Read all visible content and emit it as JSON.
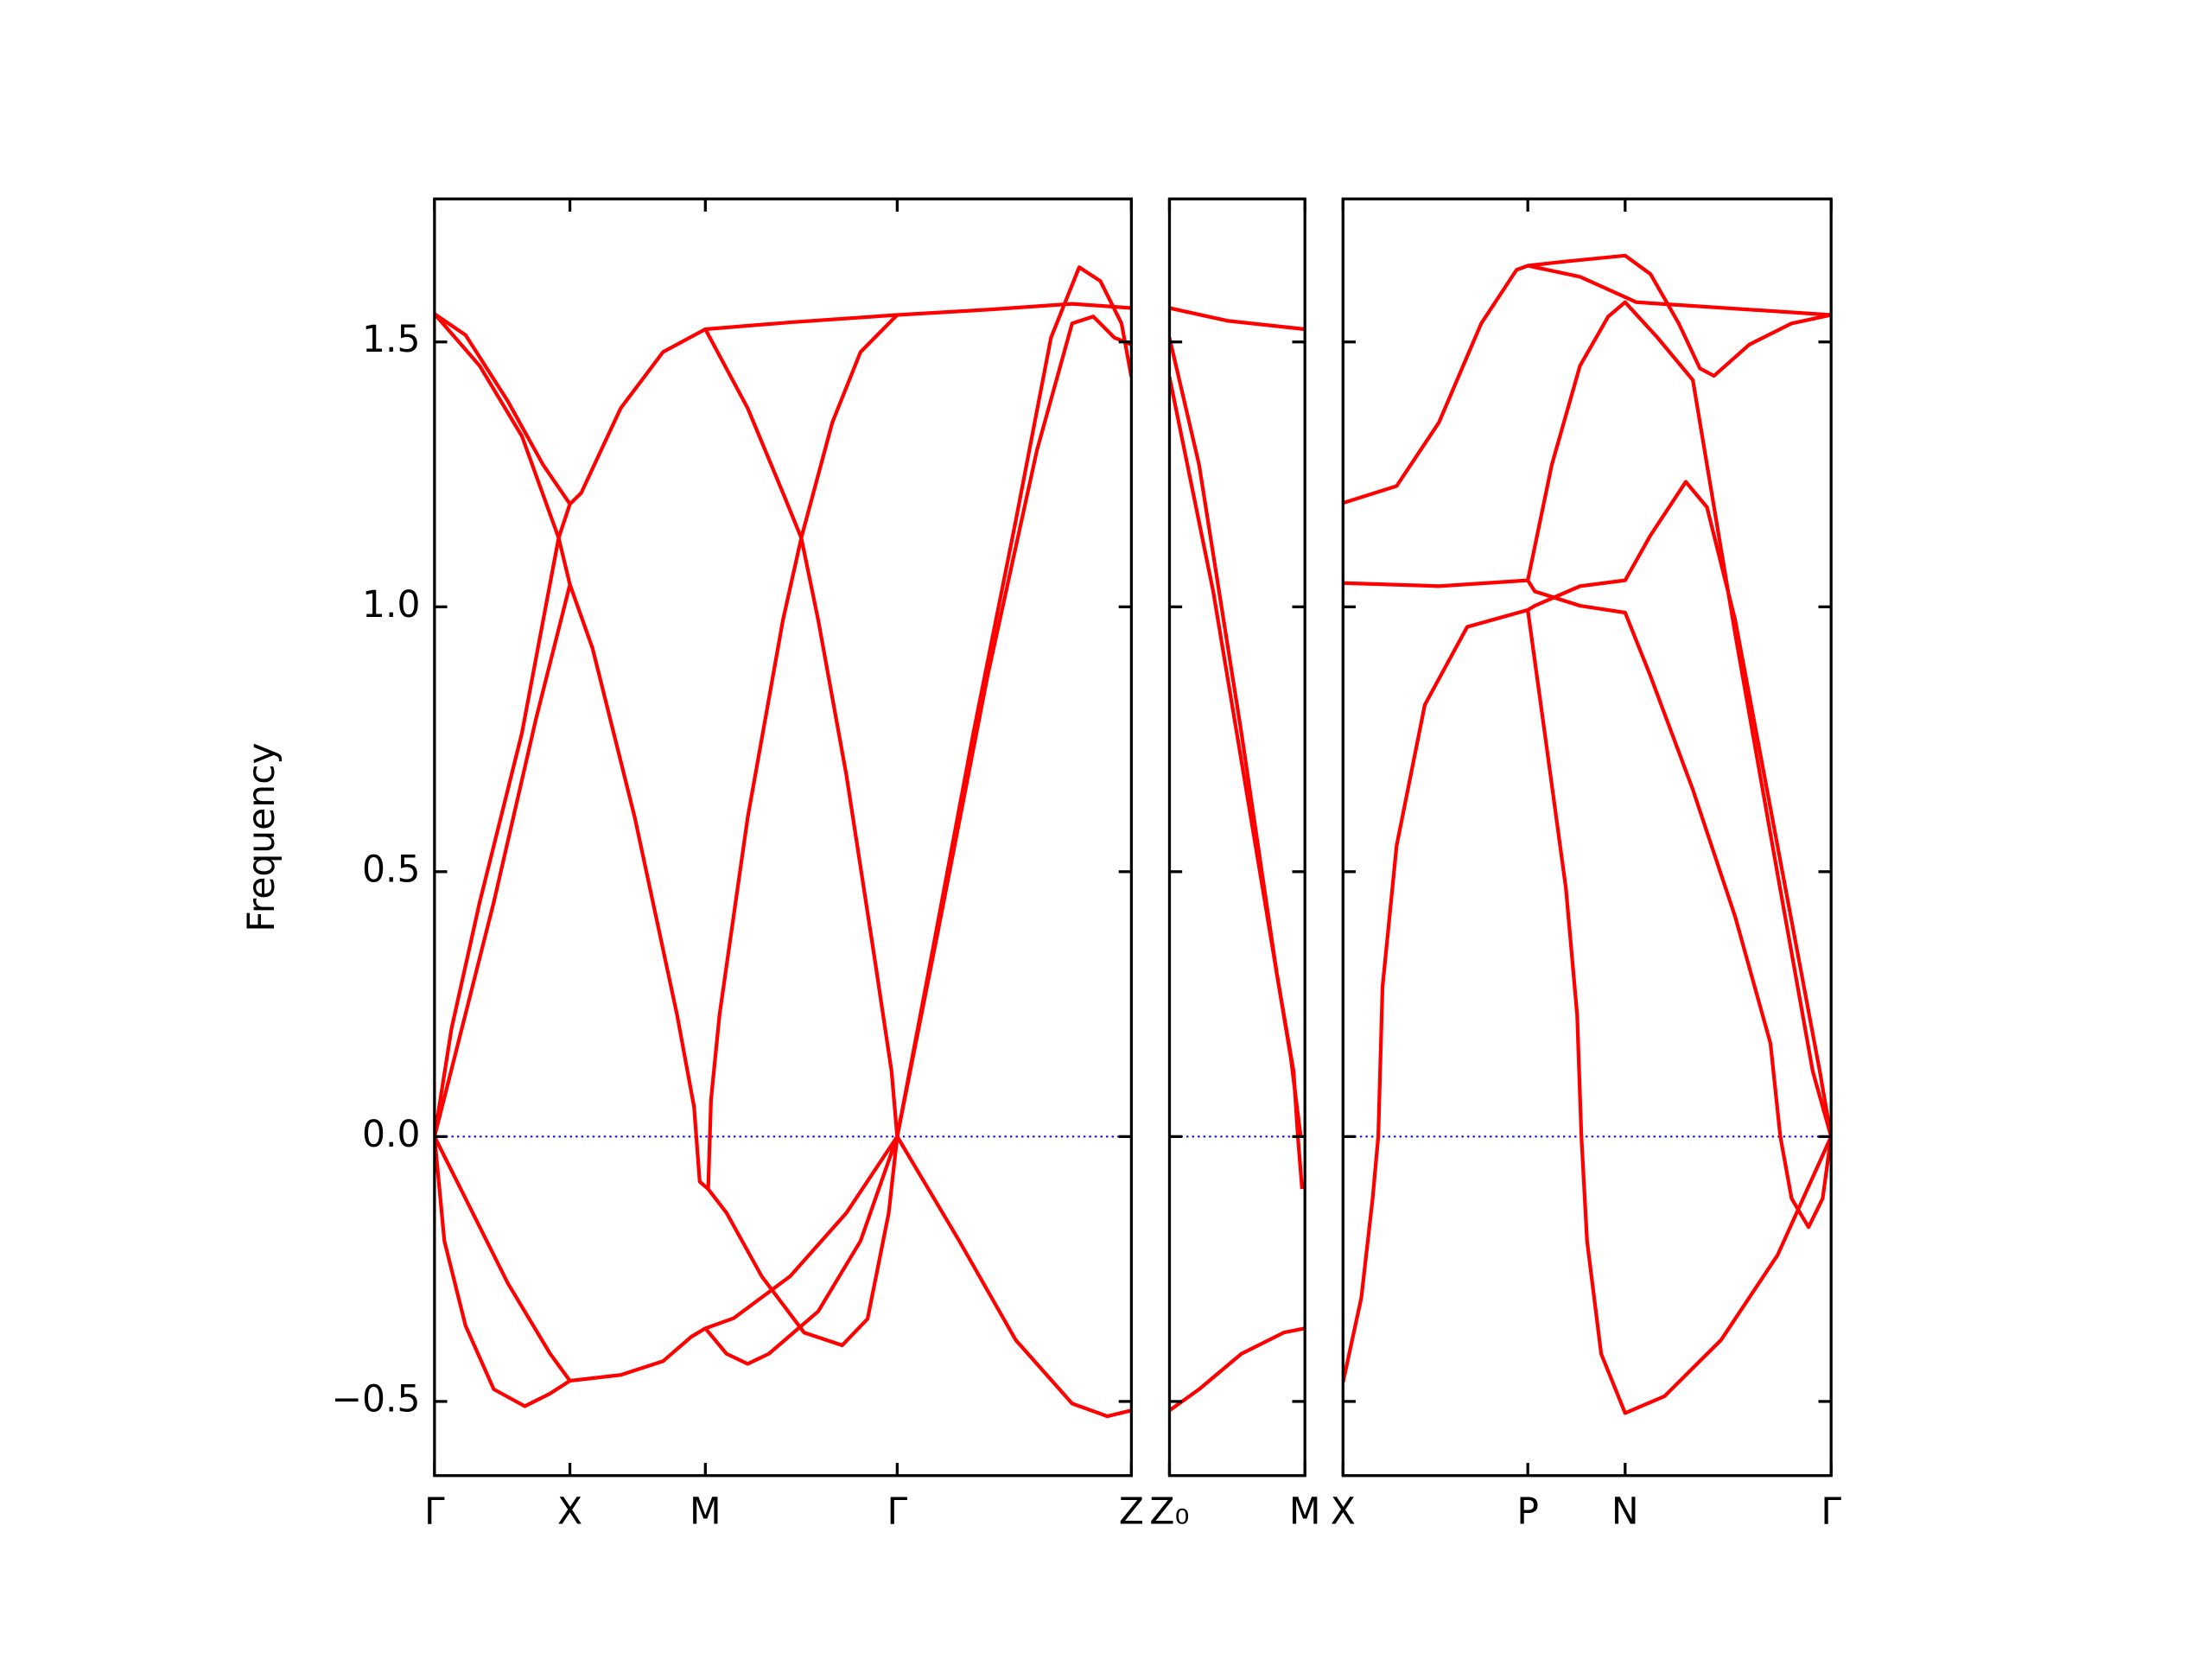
{
  "chart_data": [
    {
      "type": "line",
      "color": "#ff0000",
      "baseline_color": "#0000ff",
      "ylabel": "Frequency",
      "xlim": [
        0,
        4.94
      ],
      "xticks": [
        {
          "value": 0,
          "label": "Γ"
        },
        {
          "value": 0.96,
          "label": "X"
        },
        {
          "value": 1.92,
          "label": "M"
        },
        {
          "value": 3.28,
          "label": "Γ"
        },
        {
          "value": 4.94,
          "label": "Z"
        }
      ],
      "ylim": [
        -0.64,
        1.77
      ],
      "yticks": [
        {
          "value": -0.5,
          "label": "−0.5"
        },
        {
          "value": 0,
          "label": "0.0"
        },
        0.5,
        {
          "value": 1,
          "label": "1.0"
        },
        1.5
      ],
      "series": [
        {
          "x": [
            0,
            0.32,
            0.62,
            0.88,
            0.96,
            1.12,
            1.42,
            1.72,
            1.84,
            1.88,
            1.94,
            2.07,
            2.32,
            2.62,
            2.89,
            3.07,
            3.22,
            3.28
          ],
          "values": [
            1.553,
            1.455,
            1.322,
            1.13,
            1.042,
            0.922,
            0.602,
            0.229,
            0.056,
            -0.085,
            -0.099,
            -0.144,
            -0.264,
            -0.37,
            -0.394,
            -0.344,
            -0.144,
            0
          ]
        },
        {
          "x": [
            0,
            0.22,
            0.52,
            0.77,
            0.96,
            1.04,
            1.32,
            1.62,
            1.92,
            2.52,
            3.28,
            3.92,
            4.52,
            4.94
          ],
          "values": [
            1.553,
            1.513,
            1.388,
            1.268,
            1.194,
            1.215,
            1.375,
            1.481,
            1.524,
            1.537,
            1.551,
            1.561,
            1.572,
            1.564
          ]
        },
        {
          "x": [
            0,
            0.12,
            0.32,
            0.62,
            0.88,
            0.96
          ],
          "values": [
            0,
            0.203,
            0.442,
            0.762,
            1.13,
            1.194
          ]
        },
        {
          "x": [
            0,
            0.42,
            0.72,
            0.96
          ],
          "values": [
            0,
            0.442,
            0.789,
            1.042
          ]
        },
        {
          "x": [
            1.92,
            2.22,
            2.47,
            2.6,
            2.72,
            2.92,
            3.12,
            3.24,
            3.28
          ],
          "values": [
            1.524,
            1.375,
            1.215,
            1.13,
            0.975,
            0.682,
            0.336,
            0.123,
            0
          ]
        },
        {
          "x": [
            1.94,
            1.96,
            2.02,
            2.22,
            2.47,
            2.6,
            2.82,
            3.02,
            3.28
          ],
          "values": [
            -0.099,
            0.069,
            0.229,
            0.602,
            0.975,
            1.13,
            1.348,
            1.481,
            1.551
          ]
        },
        {
          "x": [
            3.28,
            3.52,
            3.82,
            4.12,
            4.37,
            4.57,
            4.72,
            4.87,
            4.94
          ],
          "values": [
            0,
            0.336,
            0.762,
            1.162,
            1.508,
            1.641,
            1.615,
            1.535,
            1.434
          ]
        },
        {
          "x": [
            3.28,
            3.57,
            3.92,
            4.27,
            4.52,
            4.67,
            4.82,
            4.94
          ],
          "values": [
            0,
            0.389,
            0.869,
            1.295,
            1.535,
            1.548,
            1.508,
            1.495
          ]
        },
        {
          "x": [
            0,
            0.22,
            0.52,
            0.82,
            0.96,
            1.32,
            1.62,
            1.82,
            1.92,
            2.12,
            2.52,
            2.92,
            3.28
          ],
          "values": [
            0,
            -0.117,
            -0.277,
            -0.41,
            -0.461,
            -0.45,
            -0.424,
            -0.378,
            -0.362,
            -0.343,
            -0.264,
            -0.144,
            0
          ]
        },
        {
          "x": [
            0,
            0.07,
            0.22,
            0.42,
            0.64,
            0.82,
            0.96
          ],
          "values": [
            0,
            -0.197,
            -0.357,
            -0.477,
            -0.509,
            -0.485,
            -0.461
          ]
        },
        {
          "x": [
            1.92,
            2.07,
            2.22,
            2.37,
            2.72,
            3.02,
            3.28
          ],
          "values": [
            -0.362,
            -0.41,
            -0.429,
            -0.41,
            -0.33,
            -0.197,
            0
          ]
        },
        {
          "x": [
            3.28,
            3.72,
            4.12,
            4.52,
            4.77,
            4.94
          ],
          "values": [
            0,
            -0.197,
            -0.384,
            -0.504,
            -0.528,
            -0.517
          ]
        }
      ]
    },
    {
      "type": "line",
      "color": "#ff0000",
      "baseline_color": "#0000ff",
      "sharey": true,
      "xlim": [
        0,
        0.96
      ],
      "xticks": [
        {
          "value": 0,
          "label": "Z₀"
        },
        {
          "value": 0.96,
          "label": "M"
        }
      ],
      "series": [
        {
          "x": [
            0,
            0.41,
            0.96
          ],
          "values": [
            1.564,
            1.54,
            1.524
          ]
        },
        {
          "x": [
            0,
            0.21,
            0.51,
            0.76,
            0.88,
            0.91,
            0.94
          ],
          "values": [
            1.508,
            1.268,
            0.762,
            0.309,
            0.123,
            0,
            -0.099
          ]
        },
        {
          "x": [
            0,
            0.31,
            0.61,
            0.86,
            0.93
          ],
          "values": [
            1.434,
            1.029,
            0.549,
            0.149,
            0
          ]
        },
        {
          "x": [
            0,
            0.21,
            0.51,
            0.81,
            0.96
          ],
          "values": [
            -0.517,
            -0.477,
            -0.41,
            -0.37,
            -0.362
          ]
        }
      ]
    },
    {
      "type": "line",
      "color": "#ff0000",
      "baseline_color": "#0000ff",
      "sharey": true,
      "xlim": [
        0,
        3.46
      ],
      "xticks": [
        {
          "value": 0,
          "label": "X"
        },
        {
          "value": 1.31,
          "label": "P"
        },
        {
          "value": 2,
          "label": "N"
        },
        {
          "value": 3.46,
          "label": "Γ"
        }
      ],
      "series": [
        {
          "x": [
            0,
            0.38,
            0.68,
            0.98,
            1.23,
            1.31,
            1.58,
            2,
            2.18,
            2.38,
            2.53,
            2.63,
            2.88,
            3.18,
            3.46
          ],
          "values": [
            1.196,
            1.228,
            1.348,
            1.535,
            1.636,
            1.644,
            1.652,
            1.663,
            1.628,
            1.535,
            1.45,
            1.436,
            1.495,
            1.535,
            1.551
          ]
        },
        {
          "x": [
            1.31,
            1.68,
            1.93,
            2.08,
            3.46
          ],
          "values": [
            1.644,
            1.623,
            1.593,
            1.575,
            1.551
          ]
        },
        {
          "x": [
            0,
            0.68,
            1.31,
            1.36,
            1.68,
            2,
            2.18,
            2.48,
            2.78,
            3.03,
            3.1,
            3.18,
            3.3,
            3.4,
            3.46
          ],
          "values": [
            1.045,
            1.039,
            1.05,
            1.029,
            1.002,
            0.989,
            0.869,
            0.655,
            0.415,
            0.176,
            0,
            -0.117,
            -0.171,
            -0.117,
            0
          ]
        },
        {
          "x": [
            0,
            0.13,
            0.21,
            0.25,
            0.28,
            0.38,
            0.58,
            0.88,
            1.31,
            1.36,
            1.68,
            2,
            2.18,
            2.43,
            2.58,
            2.78,
            3.08,
            3.38,
            3.46
          ],
          "values": [
            -0.464,
            -0.304,
            -0.117,
            0,
            0.282,
            0.549,
            0.815,
            0.962,
            0.994,
            1.002,
            1.039,
            1.05,
            1.135,
            1.236,
            1.188,
            0.975,
            0.549,
            0.123,
            0
          ]
        },
        {
          "x": [
            1.31,
            1.43,
            1.58,
            1.66,
            1.69,
            1.73,
            1.83,
            2,
            2.28,
            2.68,
            3.08,
            3.46
          ],
          "values": [
            0.994,
            0.762,
            0.469,
            0.229,
            0,
            -0.197,
            -0.41,
            -0.522,
            -0.49,
            -0.384,
            -0.224,
            0
          ]
        },
        {
          "x": [
            1.31,
            1.48,
            1.68,
            1.88,
            2,
            2.23,
            2.48,
            2.78,
            3.08,
            3.33,
            3.46
          ],
          "values": [
            1.05,
            1.268,
            1.455,
            1.548,
            1.575,
            1.508,
            1.428,
            0.949,
            0.496,
            0.123,
            0
          ]
        }
      ]
    }
  ]
}
